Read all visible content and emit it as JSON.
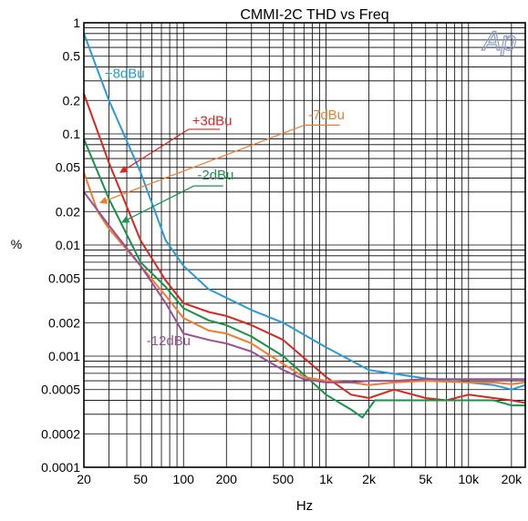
{
  "chart_data": {
    "type": "line",
    "title": "CMMI-2C  THD vs Freq",
    "xlabel": "Hz",
    "ylabel": "%",
    "x_scale": "log",
    "y_scale": "log",
    "xlim": [
      20,
      25000
    ],
    "ylim": [
      0.0001,
      1
    ],
    "grid": true,
    "logo_text": "Ap",
    "x_ticks": [
      {
        "v": 20,
        "label": "20"
      },
      {
        "v": 50,
        "label": "50"
      },
      {
        "v": 100,
        "label": "100"
      },
      {
        "v": 200,
        "label": "200"
      },
      {
        "v": 500,
        "label": "500"
      },
      {
        "v": 1000,
        "label": "1k"
      },
      {
        "v": 2000,
        "label": "2k"
      },
      {
        "v": 5000,
        "label": "5k"
      },
      {
        "v": 10000,
        "label": "10k"
      },
      {
        "v": 20000,
        "label": "20k"
      }
    ],
    "y_ticks": [
      {
        "v": 1,
        "label": "1"
      },
      {
        "v": 0.5,
        "label": "0.5"
      },
      {
        "v": 0.2,
        "label": "0.2"
      },
      {
        "v": 0.1,
        "label": "0.1"
      },
      {
        "v": 0.05,
        "label": "0.05"
      },
      {
        "v": 0.02,
        "label": "0.02"
      },
      {
        "v": 0.01,
        "label": "0.01"
      },
      {
        "v": 0.005,
        "label": "0.005"
      },
      {
        "v": 0.002,
        "label": "0.002"
      },
      {
        "v": 0.001,
        "label": "0.001"
      },
      {
        "v": 0.0005,
        "label": "0.0005"
      },
      {
        "v": 0.0002,
        "label": "0.0002"
      },
      {
        "v": 0.0001,
        "label": "0.0001"
      }
    ],
    "series": [
      {
        "name": "+8dBu",
        "color": "#2a9bd6",
        "x": [
          20,
          30,
          50,
          75,
          100,
          150,
          300,
          500,
          1000,
          2000,
          5000,
          10000,
          15000,
          20000,
          25000
        ],
        "y": [
          0.8,
          0.2,
          0.045,
          0.011,
          0.0065,
          0.004,
          0.0026,
          0.002,
          0.0012,
          0.00075,
          0.00063,
          0.00058,
          0.00055,
          0.0005,
          0.00055
        ]
      },
      {
        "name": "+3dBu",
        "color": "#d9271f",
        "x": [
          20,
          30,
          50,
          75,
          100,
          150,
          200,
          300,
          500,
          1000,
          1500,
          2000,
          3000,
          5000,
          7000,
          10000,
          15000,
          20000,
          25000
        ],
        "y": [
          0.23,
          0.055,
          0.011,
          0.0048,
          0.003,
          0.0025,
          0.0023,
          0.0019,
          0.0014,
          0.00065,
          0.00045,
          0.00042,
          0.0005,
          0.00042,
          0.0004,
          0.00045,
          0.00042,
          0.0004,
          0.00038
        ]
      },
      {
        "name": "-2dBu",
        "color": "#169447",
        "x": [
          20,
          30,
          50,
          75,
          100,
          150,
          200,
          300,
          500,
          700,
          1000,
          1500,
          1800,
          2200,
          3000,
          5000,
          10000,
          15000,
          20000,
          25000
        ],
        "y": [
          0.09,
          0.026,
          0.007,
          0.0042,
          0.0027,
          0.0021,
          0.0019,
          0.0015,
          0.001,
          0.00068,
          0.00045,
          0.00033,
          0.00028,
          0.0004,
          0.0004,
          0.0004,
          0.0004,
          0.0004,
          0.00036,
          0.00036
        ]
      },
      {
        "name": "-7dBu",
        "color": "#ef7d2e",
        "x": [
          20,
          25,
          30,
          50,
          75,
          100,
          150,
          200,
          300,
          500,
          700,
          1000,
          1500,
          2000,
          3000,
          5000,
          10000,
          15000,
          20000,
          25000
        ],
        "y": [
          0.045,
          0.02,
          0.014,
          0.0065,
          0.0035,
          0.0022,
          0.0017,
          0.0016,
          0.0013,
          0.00085,
          0.00065,
          0.0006,
          0.00058,
          0.00055,
          0.00058,
          0.0006,
          0.00058,
          0.00058,
          0.00056,
          0.00058
        ]
      },
      {
        "name": "-12dBu",
        "color": "#9b4f96",
        "x": [
          20,
          30,
          50,
          75,
          100,
          150,
          200,
          300,
          500,
          700,
          1000,
          1500,
          2000,
          3000,
          5000,
          10000,
          15000,
          20000,
          25000
        ],
        "y": [
          0.03,
          0.015,
          0.0065,
          0.003,
          0.0016,
          0.0014,
          0.0013,
          0.0011,
          0.00075,
          0.00062,
          0.00058,
          0.00058,
          0.0006,
          0.0006,
          0.00062,
          0.00062,
          0.00062,
          0.00062,
          0.00062
        ]
      }
    ],
    "annotations": [
      {
        "text": "+8dBu",
        "color": "#2a9bd6",
        "label_at": [
          28,
          0.32
        ]
      },
      {
        "text": "+3dBu",
        "color": "#d9271f",
        "label_at": [
          115,
          0.12
        ],
        "underline_to": [
          180,
          0.11
        ],
        "arrow_to": [
          36,
          0.045
        ]
      },
      {
        "text": "-7dBu",
        "color": "#ef7d2e",
        "label_at": [
          750,
          0.135
        ],
        "underline_to": [
          1250,
          0.12
        ],
        "arrow_to": [
          26,
          0.024
        ]
      },
      {
        "text": "-2dBu",
        "color": "#169447",
        "label_at": [
          125,
          0.039
        ],
        "underline_to": [
          190,
          0.034
        ],
        "arrow_to": [
          37,
          0.016
        ]
      },
      {
        "text": "-12dBu",
        "color": "#9b4f96",
        "label_at": [
          55,
          0.00125
        ]
      }
    ]
  }
}
